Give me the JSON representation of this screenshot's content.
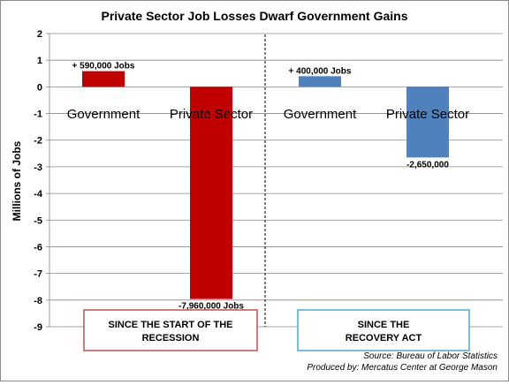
{
  "chart_data": {
    "type": "bar",
    "title": "Private Sector Job Losses Dwarf Government Gains",
    "ylabel": "Millions of Jobs",
    "xlabel": "",
    "ylim": [
      -9,
      2
    ],
    "yticks": [
      "2",
      "1",
      "0",
      "-1",
      "-2",
      "-3",
      "-4",
      "-5",
      "-6",
      "-7",
      "-8",
      "-9"
    ],
    "grid": true,
    "legend": "none",
    "categories": [
      "Government",
      "Private Sector",
      "Government",
      "Private Sector"
    ],
    "values": [
      0.59,
      -7.96,
      0.4,
      -2.65
    ],
    "value_labels": [
      "+ 590,000 Jobs",
      "-7,960,000 Jobs",
      "+ 400,000 Jobs",
      "-2,650,000"
    ],
    "colors": [
      "#c00000",
      "#c00000",
      "#4f81bd",
      "#4f81bd"
    ],
    "groups": [
      {
        "label_lines": [
          "SINCE THE START OF THE",
          "RECESSION"
        ],
        "border_color": "#c0504d"
      },
      {
        "label_lines": [
          "SINCE THE",
          "RECOVERY ACT"
        ],
        "border_color": "#4bacc6"
      }
    ],
    "source_lines": [
      "Source: Bureau of Labor Statistics",
      "Produced by: Mercatus Center at George Mason"
    ]
  }
}
